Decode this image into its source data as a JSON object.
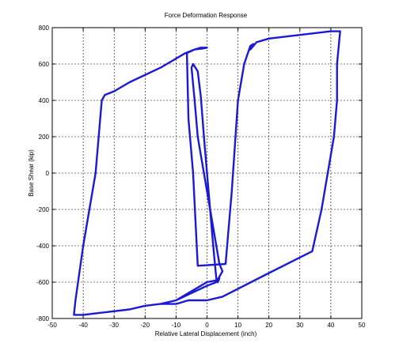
{
  "chart_data": {
    "type": "line",
    "title": "Force Deformation Response",
    "xlabel": "Relative Lateral Displacement (inch)",
    "ylabel": "Base Shear (kip)",
    "xlim": [
      -50,
      50
    ],
    "ylim": [
      -800,
      800
    ],
    "xticks": [
      -50,
      -40,
      -30,
      -20,
      -10,
      0,
      10,
      20,
      30,
      40,
      50
    ],
    "yticks": [
      -800,
      -600,
      -400,
      -200,
      0,
      200,
      400,
      600,
      800
    ],
    "xtick_labels": [
      "-50",
      "-40",
      "-30",
      "-20",
      "-10",
      "0",
      "10",
      "20",
      "30",
      "40",
      "50"
    ],
    "ytick_labels": [
      "-800",
      "-600",
      "-400",
      "-200",
      "0",
      "200",
      "400",
      "600",
      "800"
    ],
    "grid": true,
    "series": [
      {
        "color": "#1a1ad6",
        "x": [
          0,
          -1.5,
          -4,
          -5,
          -6.5,
          -6,
          -4.5,
          -3,
          6,
          7,
          8,
          9,
          10,
          12,
          14,
          15,
          14,
          16,
          20,
          40,
          43,
          42,
          42,
          41,
          39,
          37,
          34,
          20,
          5,
          0,
          -6,
          -10,
          -15,
          -10,
          -5,
          0,
          3,
          4,
          5,
          4,
          3,
          1,
          -1,
          -3,
          -4,
          -5,
          -4.5,
          -3,
          -2,
          -1,
          0,
          1,
          2,
          3,
          3.5,
          4,
          3,
          0,
          -10,
          -15,
          -20,
          -25,
          -30,
          -35,
          -40,
          -43,
          -42.5,
          -40,
          -38,
          -36,
          -35,
          -34,
          -33,
          -30,
          -25,
          -15,
          -7,
          -4,
          -2,
          0
        ],
        "y": [
          690,
          685,
          680,
          672,
          660,
          300,
          0,
          -510,
          -500,
          -300,
          -100,
          150,
          400,
          600,
          700,
          710,
          680,
          720,
          740,
          780,
          780,
          600,
          400,
          200,
          0,
          -200,
          -430,
          -550,
          -680,
          -700,
          -700,
          -720,
          -720,
          -700,
          -660,
          -620,
          -600,
          -570,
          -540,
          -500,
          -400,
          -200,
          0,
          200,
          400,
          580,
          600,
          560,
          420,
          200,
          0,
          -200,
          -400,
          -580,
          -600,
          -580,
          -590,
          -600,
          -700,
          -720,
          -730,
          -750,
          -760,
          -770,
          -780,
          -780,
          -700,
          -400,
          -200,
          0,
          200,
          400,
          430,
          450,
          500,
          580,
          660,
          680,
          690,
          690
        ]
      }
    ]
  }
}
